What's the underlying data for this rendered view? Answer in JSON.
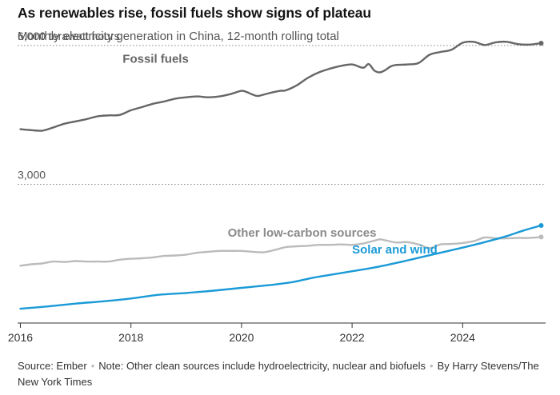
{
  "header": {
    "title": "As renewables rise, fossil fuels show signs of plateau",
    "subtitle": "Monthly electricity generation in China, 12-month rolling total"
  },
  "footer": {
    "source": "Source: Ember",
    "note": "Note: Other clean sources include hydroelectricity, nuclear and biofuels",
    "byline": "By Harry Stevens/The New York Times"
  },
  "colors": {
    "fossil": "#666666",
    "other": "#bbbbbb",
    "solar_wind": "#1a9ad6",
    "grid": "#888888",
    "axis": "#333333"
  },
  "chart_data": {
    "type": "line",
    "title": "As renewables rise, fossil fuels show signs of plateau",
    "subtitle": "Monthly electricity generation in China, 12-month rolling total",
    "y_unit": "terawatt hours",
    "ylim": [
      0,
      6500
    ],
    "y_ticks": [
      {
        "value": 3000,
        "label": "3,000"
      },
      {
        "value": 6000,
        "label": "6,000 terawatt hours"
      }
    ],
    "xlim": [
      2015.95,
      2025.5
    ],
    "x_ticks": [
      {
        "value": 2016,
        "label": "2016"
      },
      {
        "value": 2018,
        "label": "2018"
      },
      {
        "value": 2020,
        "label": "2020"
      },
      {
        "value": 2022,
        "label": "2022"
      },
      {
        "value": 2024,
        "label": "2024"
      }
    ],
    "grid": "dotted horizontal at labeled ticks",
    "series": [
      {
        "name": "Fossil fuels",
        "color_key": "fossil",
        "points": [
          [
            2016.0,
            4190
          ],
          [
            2016.2,
            4170
          ],
          [
            2016.4,
            4160
          ],
          [
            2016.6,
            4230
          ],
          [
            2016.8,
            4310
          ],
          [
            2017.0,
            4360
          ],
          [
            2017.2,
            4410
          ],
          [
            2017.4,
            4470
          ],
          [
            2017.6,
            4490
          ],
          [
            2017.8,
            4500
          ],
          [
            2018.0,
            4600
          ],
          [
            2018.2,
            4670
          ],
          [
            2018.4,
            4740
          ],
          [
            2018.6,
            4790
          ],
          [
            2018.8,
            4850
          ],
          [
            2019.0,
            4880
          ],
          [
            2019.2,
            4900
          ],
          [
            2019.4,
            4880
          ],
          [
            2019.6,
            4900
          ],
          [
            2019.8,
            4950
          ],
          [
            2020.0,
            5020
          ],
          [
            2020.1,
            4990
          ],
          [
            2020.2,
            4940
          ],
          [
            2020.3,
            4910
          ],
          [
            2020.5,
            4970
          ],
          [
            2020.7,
            5020
          ],
          [
            2020.8,
            5030
          ],
          [
            2021.0,
            5140
          ],
          [
            2021.2,
            5300
          ],
          [
            2021.4,
            5420
          ],
          [
            2021.6,
            5500
          ],
          [
            2021.8,
            5560
          ],
          [
            2022.0,
            5590
          ],
          [
            2022.2,
            5520
          ],
          [
            2022.3,
            5600
          ],
          [
            2022.4,
            5460
          ],
          [
            2022.5,
            5420
          ],
          [
            2022.6,
            5470
          ],
          [
            2022.7,
            5550
          ],
          [
            2022.8,
            5580
          ],
          [
            2023.0,
            5590
          ],
          [
            2023.2,
            5620
          ],
          [
            2023.4,
            5800
          ],
          [
            2023.6,
            5860
          ],
          [
            2023.8,
            5910
          ],
          [
            2024.0,
            6060
          ],
          [
            2024.2,
            6080
          ],
          [
            2024.4,
            6010
          ],
          [
            2024.6,
            6070
          ],
          [
            2024.8,
            6080
          ],
          [
            2025.0,
            6030
          ],
          [
            2025.2,
            6020
          ],
          [
            2025.42,
            6050
          ]
        ]
      },
      {
        "name": "Other low-carbon sources",
        "color_key": "other",
        "points": [
          [
            2016.0,
            1240
          ],
          [
            2016.2,
            1270
          ],
          [
            2016.4,
            1290
          ],
          [
            2016.6,
            1330
          ],
          [
            2016.8,
            1320
          ],
          [
            2017.0,
            1340
          ],
          [
            2017.2,
            1330
          ],
          [
            2017.4,
            1330
          ],
          [
            2017.6,
            1330
          ],
          [
            2017.8,
            1370
          ],
          [
            2018.0,
            1390
          ],
          [
            2018.2,
            1400
          ],
          [
            2018.4,
            1420
          ],
          [
            2018.6,
            1450
          ],
          [
            2018.8,
            1460
          ],
          [
            2019.0,
            1480
          ],
          [
            2019.2,
            1520
          ],
          [
            2019.4,
            1540
          ],
          [
            2019.6,
            1560
          ],
          [
            2019.8,
            1560
          ],
          [
            2020.0,
            1560
          ],
          [
            2020.2,
            1540
          ],
          [
            2020.4,
            1530
          ],
          [
            2020.6,
            1580
          ],
          [
            2020.8,
            1640
          ],
          [
            2021.0,
            1660
          ],
          [
            2021.2,
            1670
          ],
          [
            2021.4,
            1690
          ],
          [
            2021.6,
            1690
          ],
          [
            2021.8,
            1700
          ],
          [
            2022.0,
            1690
          ],
          [
            2022.2,
            1720
          ],
          [
            2022.4,
            1780
          ],
          [
            2022.5,
            1810
          ],
          [
            2022.6,
            1790
          ],
          [
            2022.8,
            1740
          ],
          [
            2023.0,
            1750
          ],
          [
            2023.2,
            1700
          ],
          [
            2023.4,
            1620
          ],
          [
            2023.6,
            1700
          ],
          [
            2023.8,
            1710
          ],
          [
            2024.0,
            1730
          ],
          [
            2024.2,
            1770
          ],
          [
            2024.4,
            1850
          ],
          [
            2024.6,
            1830
          ],
          [
            2024.8,
            1830
          ],
          [
            2025.0,
            1840
          ],
          [
            2025.2,
            1840
          ],
          [
            2025.42,
            1860
          ]
        ]
      },
      {
        "name": "Solar and wind",
        "color_key": "solar_wind",
        "points": [
          [
            2016.0,
            310
          ],
          [
            2016.5,
            360
          ],
          [
            2017.0,
            420
          ],
          [
            2017.5,
            470
          ],
          [
            2018.0,
            530
          ],
          [
            2018.5,
            610
          ],
          [
            2019.0,
            650
          ],
          [
            2019.5,
            700
          ],
          [
            2020.0,
            760
          ],
          [
            2020.5,
            820
          ],
          [
            2020.9,
            880
          ],
          [
            2021.3,
            980
          ],
          [
            2021.7,
            1060
          ],
          [
            2022.0,
            1120
          ],
          [
            2022.4,
            1200
          ],
          [
            2022.8,
            1300
          ],
          [
            2023.2,
            1410
          ],
          [
            2023.6,
            1520
          ],
          [
            2024.0,
            1630
          ],
          [
            2024.4,
            1750
          ],
          [
            2024.8,
            1880
          ],
          [
            2025.1,
            2000
          ],
          [
            2025.42,
            2110
          ]
        ]
      }
    ],
    "annotations": [
      {
        "series": "Fossil fuels",
        "text": "Fossil fuels"
      },
      {
        "series": "Other low-carbon sources",
        "text": "Other low-carbon sources"
      },
      {
        "series": "Solar and wind",
        "text": "Solar and wind"
      }
    ]
  }
}
